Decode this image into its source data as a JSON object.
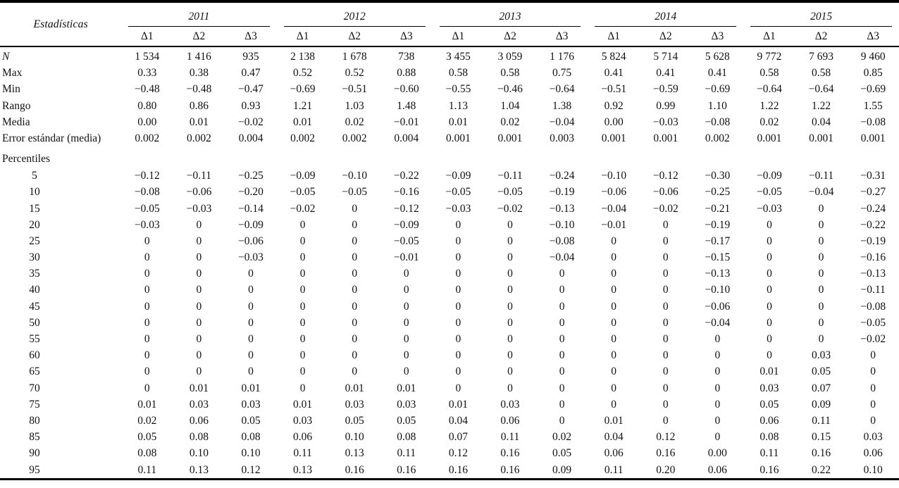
{
  "table": {
    "stub_header": "Estadísticas",
    "years": [
      {
        "label": "2011",
        "columns": [
          "Δ1",
          "Δ2",
          "Δ3"
        ]
      },
      {
        "label": "2012",
        "columns": [
          "Δ1",
          "Δ2",
          "Δ3"
        ]
      },
      {
        "label": "2013",
        "columns": [
          "Δ1",
          "Δ2",
          "Δ3"
        ]
      },
      {
        "label": "2014",
        "columns": [
          "Δ1",
          "Δ2",
          "Δ3"
        ]
      },
      {
        "label": "2015",
        "columns": [
          "Δ1",
          "Δ2",
          "Δ3"
        ]
      }
    ],
    "rows": [
      {
        "label": "N",
        "italic": true,
        "values": [
          "1 534",
          "1 416",
          "935",
          "2 138",
          "1 678",
          "738",
          "3 455",
          "3 059",
          "1 176",
          "5 824",
          "5 714",
          "5 628",
          "9 772",
          "7 693",
          "9 460"
        ]
      },
      {
        "label": "Max",
        "values": [
          "0.33",
          "0.38",
          "0.47",
          "0.52",
          "0.52",
          "0.88",
          "0.58",
          "0.58",
          "0.75",
          "0.41",
          "0.41",
          "0.41",
          "0.58",
          "0.58",
          "0.85"
        ]
      },
      {
        "label": "Min",
        "values": [
          "−0.48",
          "−0.48",
          "−0.47",
          "−0.69",
          "−0.51",
          "−0.60",
          "−0.55",
          "−0.46",
          "−0.64",
          "−0.51",
          "−0.59",
          "−0.69",
          "−0.64",
          "−0.64",
          "−0.69"
        ]
      },
      {
        "label": "Rango",
        "values": [
          "0.80",
          "0.86",
          "0.93",
          "1.21",
          "1.03",
          "1.48",
          "1.13",
          "1.04",
          "1.38",
          "0.92",
          "0.99",
          "1.10",
          "1.22",
          "1.22",
          "1.55"
        ]
      },
      {
        "label": "Media",
        "values": [
          "0.00",
          "0.01",
          "−0.02",
          "0.01",
          "0.02",
          "−0.01",
          "0.01",
          "0.02",
          "−0.04",
          "0.00",
          "−0.03",
          "−0.08",
          "0.02",
          "0.04",
          "−0.08"
        ]
      },
      {
        "label": "Error estándar (media)",
        "values": [
          "0.002",
          "0.002",
          "0.004",
          "0.002",
          "0.002",
          "0.004",
          "0.001",
          "0.001",
          "0.003",
          "0.001",
          "0.001",
          "0.002",
          "0.001",
          "0.001",
          "0.001"
        ]
      },
      {
        "label": "Percentiles",
        "section": true,
        "values": []
      },
      {
        "label": "5",
        "indent": true,
        "values": [
          "−0.12",
          "−0.11",
          "−0.25",
          "−0.09",
          "−0.10",
          "−0.22",
          "−0.09",
          "−0.11",
          "−0.24",
          "−0.10",
          "−0.12",
          "−0.30",
          "−0.09",
          "−0.11",
          "−0.31"
        ]
      },
      {
        "label": "10",
        "indent": true,
        "values": [
          "−0.08",
          "−0.06",
          "−0.20",
          "−0.05",
          "−0.05",
          "−0.16",
          "−0.05",
          "−0.05",
          "−0.19",
          "−0.06",
          "−0.06",
          "−0.25",
          "−0.05",
          "−0.04",
          "−0.27"
        ]
      },
      {
        "label": "15",
        "indent": true,
        "values": [
          "−0.05",
          "−0.03",
          "−0.14",
          "−0.02",
          "0",
          "−0.12",
          "−0.03",
          "−0.02",
          "−0.13",
          "−0.04",
          "−0.02",
          "−0.21",
          "−0.03",
          "0",
          "−0.24"
        ]
      },
      {
        "label": "20",
        "indent": true,
        "values": [
          "−0.03",
          "0",
          "−0.09",
          "0",
          "0",
          "−0.09",
          "0",
          "0",
          "−0.10",
          "−0.01",
          "0",
          "−0.19",
          "0",
          "0",
          "−0.22"
        ]
      },
      {
        "label": "25",
        "indent": true,
        "values": [
          "0",
          "0",
          "−0.06",
          "0",
          "0",
          "−0.05",
          "0",
          "0",
          "−0.08",
          "0",
          "0",
          "−0.17",
          "0",
          "0",
          "−0.19"
        ]
      },
      {
        "label": "30",
        "indent": true,
        "values": [
          "0",
          "0",
          "−0.03",
          "0",
          "0",
          "−0.01",
          "0",
          "0",
          "−0.04",
          "0",
          "0",
          "−0.15",
          "0",
          "0",
          "−0.16"
        ]
      },
      {
        "label": "35",
        "indent": true,
        "values": [
          "0",
          "0",
          "0",
          "0",
          "0",
          "0",
          "0",
          "0",
          "0",
          "0",
          "0",
          "−0.13",
          "0",
          "0",
          "−0.13"
        ]
      },
      {
        "label": "40",
        "indent": true,
        "values": [
          "0",
          "0",
          "0",
          "0",
          "0",
          "0",
          "0",
          "0",
          "0",
          "0",
          "0",
          "−0.10",
          "0",
          "0",
          "−0.11"
        ]
      },
      {
        "label": "45",
        "indent": true,
        "values": [
          "0",
          "0",
          "0",
          "0",
          "0",
          "0",
          "0",
          "0",
          "0",
          "0",
          "0",
          "−0.06",
          "0",
          "0",
          "−0.08"
        ]
      },
      {
        "label": "50",
        "indent": true,
        "values": [
          "0",
          "0",
          "0",
          "0",
          "0",
          "0",
          "0",
          "0",
          "0",
          "0",
          "0",
          "−0.04",
          "0",
          "0",
          "−0.05"
        ]
      },
      {
        "label": "55",
        "indent": true,
        "values": [
          "0",
          "0",
          "0",
          "0",
          "0",
          "0",
          "0",
          "0",
          "0",
          "0",
          "0",
          "0",
          "0",
          "0",
          "−0.02"
        ]
      },
      {
        "label": "60",
        "indent": true,
        "values": [
          "0",
          "0",
          "0",
          "0",
          "0",
          "0",
          "0",
          "0",
          "0",
          "0",
          "0",
          "0",
          "0",
          "0.03",
          "0"
        ]
      },
      {
        "label": "65",
        "indent": true,
        "values": [
          "0",
          "0",
          "0",
          "0",
          "0",
          "0",
          "0",
          "0",
          "0",
          "0",
          "0",
          "0",
          "0.01",
          "0.05",
          "0"
        ]
      },
      {
        "label": "70",
        "indent": true,
        "values": [
          "0",
          "0.01",
          "0.01",
          "0",
          "0.01",
          "0.01",
          "0",
          "0",
          "0",
          "0",
          "0",
          "0",
          "0.03",
          "0.07",
          "0"
        ]
      },
      {
        "label": "75",
        "indent": true,
        "values": [
          "0.01",
          "0.03",
          "0.03",
          "0.01",
          "0.03",
          "0.03",
          "0.01",
          "0.03",
          "0",
          "0",
          "0",
          "0",
          "0.05",
          "0.09",
          "0"
        ]
      },
      {
        "label": "80",
        "indent": true,
        "values": [
          "0.02",
          "0.06",
          "0.05",
          "0.03",
          "0.05",
          "0.05",
          "0.04",
          "0.06",
          "0",
          "0.01",
          "0",
          "0",
          "0.06",
          "0.11",
          "0"
        ]
      },
      {
        "label": "85",
        "indent": true,
        "values": [
          "0.05",
          "0.08",
          "0.08",
          "0.06",
          "0.10",
          "0.08",
          "0.07",
          "0.11",
          "0.02",
          "0.04",
          "0.12",
          "0",
          "0.08",
          "0.15",
          "0.03"
        ]
      },
      {
        "label": "90",
        "indent": true,
        "values": [
          "0.08",
          "0.10",
          "0.10",
          "0.11",
          "0.13",
          "0.11",
          "0.12",
          "0.16",
          "0.05",
          "0.06",
          "0.16",
          "0.00",
          "0.11",
          "0.16",
          "0.06"
        ]
      },
      {
        "label": "95",
        "indent": true,
        "values": [
          "0.11",
          "0.13",
          "0.12",
          "0.13",
          "0.16",
          "0.16",
          "0.16",
          "0.16",
          "0.09",
          "0.11",
          "0.20",
          "0.06",
          "0.16",
          "0.22",
          "0.10"
        ]
      }
    ]
  }
}
